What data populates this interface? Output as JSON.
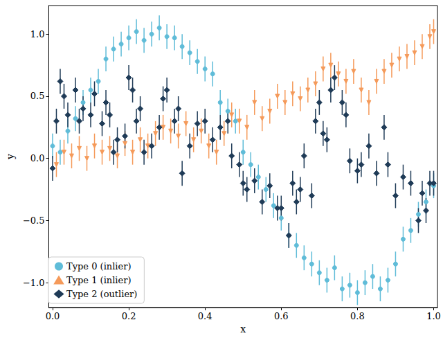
{
  "chart_data": {
    "type": "scatter",
    "x_label": "x",
    "y_label": "y",
    "xlim": [
      -0.01,
      1.01
    ],
    "ylim": [
      -1.2,
      1.23
    ],
    "xticks": [
      {
        "value": 0,
        "label": "0.0"
      },
      {
        "value": 0.2,
        "label": "0.2"
      },
      {
        "value": 0.4,
        "label": "0.4"
      },
      {
        "value": 0.6,
        "label": "0.6"
      },
      {
        "value": 0.8,
        "label": "0.8"
      },
      {
        "value": 1,
        "label": "1.0"
      }
    ],
    "yticks": [
      {
        "value": -1,
        "label": "−1.0"
      },
      {
        "value": -0.5,
        "label": "−0.5"
      },
      {
        "value": 0,
        "label": "0.0"
      },
      {
        "value": 0.5,
        "label": "0.5"
      },
      {
        "value": 1,
        "label": "1.0"
      }
    ],
    "grid": false,
    "legend": "lower left",
    "series": [
      {
        "name": "Type 0 (inlier)",
        "color": "#5fbcd8",
        "marker": "circle",
        "x": [
          0.0,
          0.02,
          0.04,
          0.06,
          0.08,
          0.1,
          0.12,
          0.14,
          0.16,
          0.18,
          0.2,
          0.22,
          0.24,
          0.26,
          0.28,
          0.3,
          0.32,
          0.34,
          0.36,
          0.38,
          0.4,
          0.42,
          0.44,
          0.46,
          0.48,
          0.5,
          0.52,
          0.54,
          0.56,
          0.58,
          0.6,
          0.62,
          0.64,
          0.66,
          0.68,
          0.7,
          0.72,
          0.74,
          0.76,
          0.78,
          0.8,
          0.82,
          0.84,
          0.86,
          0.88,
          0.9,
          0.92,
          0.94,
          0.96,
          0.98,
          1.0
        ],
        "values": [
          0.1,
          0.05,
          0.22,
          0.32,
          0.45,
          0.55,
          0.62,
          0.8,
          0.88,
          0.92,
          0.97,
          1.02,
          0.95,
          1.0,
          1.05,
          0.98,
          0.97,
          0.9,
          0.85,
          0.78,
          0.72,
          0.68,
          0.45,
          0.38,
          0.3,
          0.05,
          -0.05,
          -0.15,
          -0.25,
          -0.38,
          -0.48,
          -0.62,
          -0.7,
          -0.8,
          -0.85,
          -0.92,
          -0.98,
          -0.88,
          -1.05,
          -1.02,
          -1.08,
          -1.0,
          -0.95,
          -1.05,
          -0.98,
          -0.85,
          -0.65,
          -0.58,
          -0.45,
          -0.35,
          -0.22
        ],
        "errors": [
          0.1,
          0.1,
          0.1,
          0.1,
          0.1,
          0.1,
          0.1,
          0.1,
          0.1,
          0.1,
          0.1,
          0.1,
          0.1,
          0.1,
          0.1,
          0.1,
          0.1,
          0.1,
          0.1,
          0.1,
          0.1,
          0.1,
          0.1,
          0.1,
          0.1,
          0.1,
          0.1,
          0.1,
          0.1,
          0.1,
          0.1,
          0.1,
          0.1,
          0.1,
          0.1,
          0.1,
          0.1,
          0.1,
          0.1,
          0.1,
          0.1,
          0.1,
          0.1,
          0.1,
          0.1,
          0.1,
          0.1,
          0.1,
          0.1,
          0.1,
          0.1
        ]
      },
      {
        "name": "Type 1 (inlier)",
        "color": "#f59a5a",
        "marker": "triangle_down",
        "x": [
          0.01,
          0.03,
          0.05,
          0.07,
          0.09,
          0.11,
          0.13,
          0.15,
          0.17,
          0.19,
          0.21,
          0.23,
          0.25,
          0.27,
          0.29,
          0.31,
          0.33,
          0.35,
          0.37,
          0.39,
          0.41,
          0.43,
          0.45,
          0.47,
          0.49,
          0.51,
          0.53,
          0.55,
          0.57,
          0.59,
          0.61,
          0.63,
          0.65,
          0.67,
          0.69,
          0.71,
          0.73,
          0.75,
          0.77,
          0.79,
          0.81,
          0.83,
          0.85,
          0.87,
          0.89,
          0.91,
          0.93,
          0.95,
          0.97,
          0.99,
          1.0
        ],
        "values": [
          -0.05,
          0.05,
          0.02,
          0.08,
          0.0,
          0.1,
          0.05,
          0.08,
          0.02,
          0.12,
          0.05,
          0.15,
          0.1,
          0.2,
          0.25,
          0.22,
          0.18,
          0.28,
          0.15,
          0.22,
          0.1,
          0.05,
          0.2,
          0.35,
          0.3,
          0.25,
          0.45,
          0.32,
          0.38,
          0.5,
          0.45,
          0.52,
          0.48,
          0.55,
          0.6,
          0.72,
          0.75,
          0.68,
          0.62,
          0.7,
          0.55,
          0.45,
          0.62,
          0.7,
          0.75,
          0.8,
          0.82,
          0.85,
          0.9,
          0.98,
          1.02
        ],
        "errors": [
          0.1,
          0.1,
          0.1,
          0.1,
          0.1,
          0.1,
          0.1,
          0.1,
          0.1,
          0.1,
          0.1,
          0.1,
          0.1,
          0.1,
          0.1,
          0.1,
          0.1,
          0.1,
          0.1,
          0.1,
          0.1,
          0.1,
          0.1,
          0.1,
          0.1,
          0.1,
          0.1,
          0.1,
          0.1,
          0.1,
          0.1,
          0.1,
          0.1,
          0.1,
          0.1,
          0.1,
          0.1,
          0.1,
          0.1,
          0.1,
          0.1,
          0.1,
          0.1,
          0.1,
          0.1,
          0.1,
          0.1,
          0.1,
          0.1,
          0.1,
          0.1
        ]
      },
      {
        "name": "Type 2 (outlier)",
        "color": "#1f3b57",
        "marker": "diamond",
        "x": [
          0.0,
          0.01,
          0.02,
          0.03,
          0.04,
          0.06,
          0.07,
          0.08,
          0.1,
          0.11,
          0.13,
          0.14,
          0.15,
          0.16,
          0.17,
          0.19,
          0.2,
          0.21,
          0.22,
          0.23,
          0.24,
          0.26,
          0.28,
          0.29,
          0.3,
          0.32,
          0.33,
          0.34,
          0.36,
          0.38,
          0.4,
          0.42,
          0.44,
          0.46,
          0.47,
          0.49,
          0.5,
          0.51,
          0.53,
          0.55,
          0.57,
          0.59,
          0.6,
          0.62,
          0.63,
          0.64,
          0.65,
          0.66,
          0.68,
          0.69,
          0.7,
          0.71,
          0.72,
          0.73,
          0.74,
          0.76,
          0.77,
          0.78,
          0.8,
          0.81,
          0.83,
          0.85,
          0.87,
          0.88,
          0.9,
          0.92,
          0.94,
          0.96,
          0.97,
          0.98,
          0.99,
          1.0
        ],
        "values": [
          -0.08,
          0.3,
          0.62,
          0.5,
          0.35,
          0.55,
          0.3,
          0.4,
          0.35,
          0.52,
          0.28,
          0.45,
          0.35,
          0.05,
          0.15,
          0.18,
          0.65,
          0.55,
          0.3,
          0.4,
          0.05,
          0.1,
          0.25,
          0.48,
          0.55,
          0.3,
          0.4,
          -0.12,
          0.1,
          0.28,
          0.3,
          0.15,
          0.25,
          0.3,
          0.02,
          -0.05,
          -0.2,
          -0.25,
          -0.18,
          -0.35,
          -0.22,
          -0.4,
          -0.4,
          -0.62,
          -0.2,
          -0.35,
          -0.25,
          0.02,
          -0.3,
          0.3,
          0.45,
          0.2,
          0.15,
          0.55,
          0.65,
          0.45,
          0.35,
          -0.02,
          -0.1,
          -0.05,
          0.1,
          -0.12,
          0.25,
          -0.05,
          -0.3,
          -0.15,
          -0.2,
          -0.5,
          -0.28,
          -0.42,
          -0.2,
          -0.2
        ],
        "errors": [
          0.1,
          0.1,
          0.1,
          0.1,
          0.1,
          0.1,
          0.1,
          0.1,
          0.1,
          0.1,
          0.1,
          0.1,
          0.1,
          0.1,
          0.1,
          0.1,
          0.1,
          0.1,
          0.1,
          0.1,
          0.1,
          0.1,
          0.1,
          0.1,
          0.1,
          0.1,
          0.1,
          0.1,
          0.1,
          0.1,
          0.1,
          0.1,
          0.1,
          0.1,
          0.1,
          0.1,
          0.1,
          0.1,
          0.1,
          0.1,
          0.1,
          0.1,
          0.1,
          0.1,
          0.1,
          0.1,
          0.1,
          0.1,
          0.1,
          0.1,
          0.1,
          0.1,
          0.1,
          0.1,
          0.1,
          0.1,
          0.1,
          0.1,
          0.1,
          0.1,
          0.1,
          0.1,
          0.1,
          0.1,
          0.1,
          0.1,
          0.1,
          0.1,
          0.1,
          0.1,
          0.1,
          0.1
        ]
      }
    ]
  }
}
